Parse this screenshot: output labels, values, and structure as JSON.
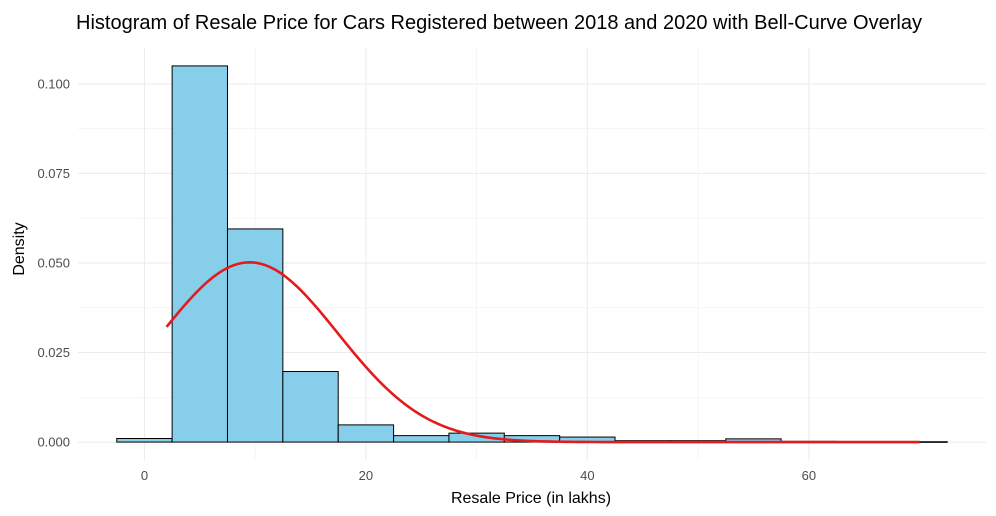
{
  "chart_data": {
    "type": "bar",
    "title": "Histogram of Resale Price for Cars Registered between 2018 and 2020 with Bell-Curve Overlay",
    "xlabel": "Resale Price (in lakhs)",
    "ylabel": "Density",
    "xlim": [
      -2.5,
      72.5
    ],
    "ylim": [
      0,
      0.105
    ],
    "x_ticks": [
      0,
      20,
      40,
      60
    ],
    "x_tick_labels": [
      "0",
      "20",
      "40",
      "60"
    ],
    "y_ticks": [
      0.0,
      0.025,
      0.05,
      0.075,
      0.1
    ],
    "y_tick_labels": [
      "0.000",
      "0.025",
      "0.050",
      "0.075",
      "0.100"
    ],
    "grid": true,
    "bin_width": 5,
    "bins": [
      {
        "start": -2.5,
        "end": 2.5,
        "density": 0.001
      },
      {
        "start": 2.5,
        "end": 7.5,
        "density": 0.105
      },
      {
        "start": 7.5,
        "end": 12.5,
        "density": 0.0595
      },
      {
        "start": 12.5,
        "end": 17.5,
        "density": 0.0197
      },
      {
        "start": 17.5,
        "end": 22.5,
        "density": 0.0048
      },
      {
        "start": 22.5,
        "end": 27.5,
        "density": 0.0018
      },
      {
        "start": 27.5,
        "end": 32.5,
        "density": 0.0025
      },
      {
        "start": 32.5,
        "end": 37.5,
        "density": 0.0018
      },
      {
        "start": 37.5,
        "end": 42.5,
        "density": 0.0014
      },
      {
        "start": 42.5,
        "end": 47.5,
        "density": 0.0004
      },
      {
        "start": 47.5,
        "end": 52.5,
        "density": 0.0004
      },
      {
        "start": 52.5,
        "end": 57.5,
        "density": 0.0009
      },
      {
        "start": 57.5,
        "end": 62.5,
        "density": 0.0002
      },
      {
        "start": 62.5,
        "end": 67.5,
        "density": 0.0001
      },
      {
        "start": 67.5,
        "end": 72.5,
        "density": 0.0001
      }
    ],
    "overlay": {
      "type": "normal_density",
      "mean": 9.5,
      "sd": 7.95,
      "x_range": [
        2,
        70
      ]
    },
    "colors": {
      "bar_fill": "#87ceeb",
      "bar_outline": "#000000",
      "curve": "#e41a1c"
    }
  }
}
